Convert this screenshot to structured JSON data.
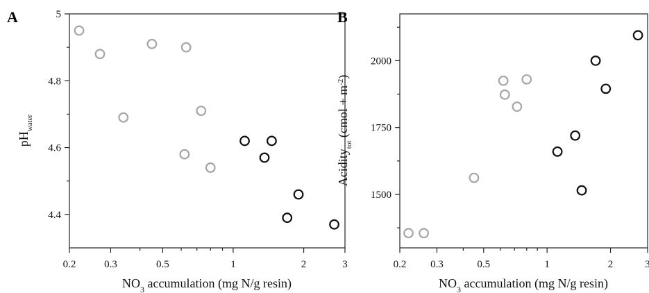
{
  "chart_data": [
    {
      "type": "scatter",
      "panel": "A",
      "xlabel": {
        "pre": "NO",
        "sub": "3",
        "post": " accumulation (mg N/g resin)"
      },
      "ylabel": {
        "pre": "pH",
        "sub": "water",
        "post": ""
      },
      "x_scale": "log",
      "xlim": [
        0.2,
        3
      ],
      "ylim": [
        4.3,
        5.0
      ],
      "xticks": [
        0.2,
        0.3,
        0.5,
        1,
        2,
        3
      ],
      "xtick_labels": [
        "0.2",
        "0.3",
        "0.5",
        "1",
        "2",
        "3"
      ],
      "xminor": [
        0.4,
        0.6,
        0.7,
        0.8,
        0.9
      ],
      "yticks": [
        4.4,
        4.6,
        4.8,
        5.0
      ],
      "ytick_labels": [
        "4.4",
        "4.6",
        "4.8",
        "5"
      ],
      "yminor": [
        4.5,
        4.7,
        4.9
      ],
      "series": [
        {
          "color": "#a6a6a6",
          "points": [
            [
              0.22,
              4.95
            ],
            [
              0.27,
              4.88
            ],
            [
              0.34,
              4.69
            ],
            [
              0.45,
              4.91
            ],
            [
              0.63,
              4.9
            ],
            [
              0.73,
              4.71
            ],
            [
              0.62,
              4.58
            ],
            [
              0.8,
              4.54
            ]
          ]
        },
        {
          "color": "#111111",
          "points": [
            [
              1.12,
              4.62
            ],
            [
              1.36,
              4.57
            ],
            [
              1.46,
              4.62
            ],
            [
              1.9,
              4.46
            ],
            [
              1.7,
              4.39
            ],
            [
              2.7,
              4.37
            ]
          ]
        }
      ]
    },
    {
      "type": "scatter",
      "panel": "B",
      "xlabel": {
        "pre": "NO",
        "sub": "3",
        "post": " accumulation (mg N/g resin)"
      },
      "ylabel": {
        "pre": "Acidity",
        "sub": "tot",
        "post": " (cmol + m",
        "sup": "-2",
        "end": ")"
      },
      "x_scale": "log",
      "xlim": [
        0.2,
        3
      ],
      "ylim": [
        1300,
        2175
      ],
      "xticks": [
        0.2,
        0.3,
        0.5,
        1,
        2,
        3
      ],
      "xtick_labels": [
        "0.2",
        "0.3",
        "0.5",
        "1",
        "2",
        "3"
      ],
      "xminor": [
        0.4,
        0.6,
        0.7,
        0.8,
        0.9
      ],
      "yticks": [
        1500,
        1750,
        2000
      ],
      "ytick_labels": [
        "1500",
        "1750",
        "2000"
      ],
      "yminor": [
        1375,
        1625,
        1875,
        2125
      ],
      "series": [
        {
          "color": "#a6a6a6",
          "points": [
            [
              0.22,
              1355
            ],
            [
              0.26,
              1355
            ],
            [
              0.45,
              1562
            ],
            [
              0.62,
              1925
            ],
            [
              0.63,
              1873
            ],
            [
              0.72,
              1828
            ],
            [
              0.8,
              1930
            ]
          ]
        },
        {
          "color": "#111111",
          "points": [
            [
              1.12,
              1660
            ],
            [
              1.36,
              1720
            ],
            [
              1.46,
              1515
            ],
            [
              1.7,
              2000
            ],
            [
              1.9,
              1895
            ],
            [
              2.7,
              2095
            ]
          ]
        }
      ]
    }
  ]
}
